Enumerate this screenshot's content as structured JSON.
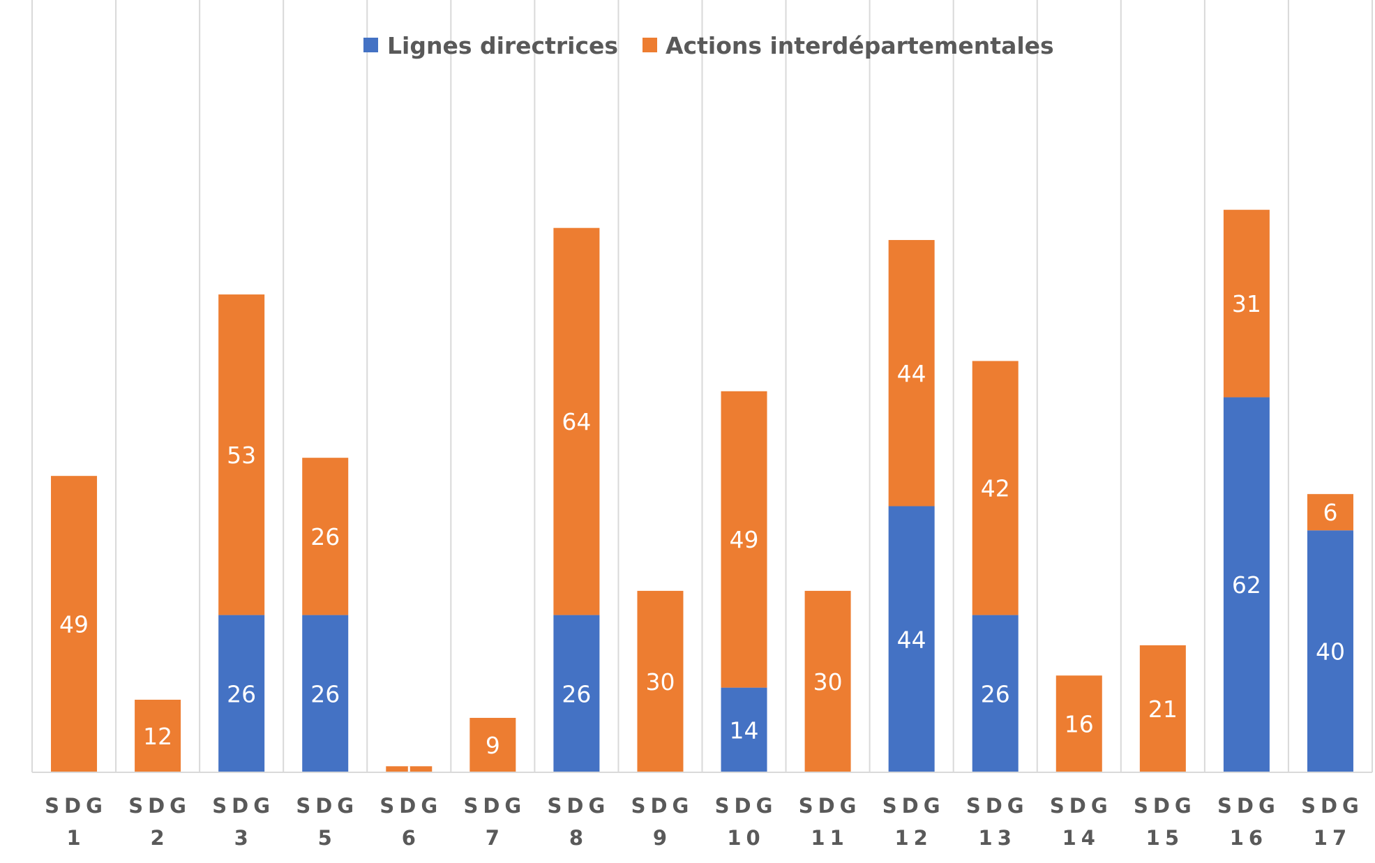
{
  "chart_data": {
    "type": "bar",
    "stacked": true,
    "title": "",
    "xlabel": "",
    "ylabel": "",
    "ylim": [
      0,
      100
    ],
    "grid": "vertical separators between categories",
    "legend_position": "top-center",
    "categories": [
      [
        "SDG",
        "1"
      ],
      [
        "SDG",
        "2"
      ],
      [
        "SDG",
        "3"
      ],
      [
        "SDG",
        "5"
      ],
      [
        "SDG",
        "6"
      ],
      [
        "SDG",
        "7"
      ],
      [
        "SDG",
        "8"
      ],
      [
        "SDG",
        "9"
      ],
      [
        "SDG",
        "10"
      ],
      [
        "SDG",
        "11"
      ],
      [
        "SDG",
        "12"
      ],
      [
        "SDG",
        "13"
      ],
      [
        "SDG",
        "14"
      ],
      [
        "SDG",
        "15"
      ],
      [
        "SDG",
        "16"
      ],
      [
        "SDG",
        "17"
      ]
    ],
    "series": [
      {
        "name": "Lignes directrices",
        "color": "#4472C4",
        "values": [
          0,
          0,
          26,
          26,
          0,
          0,
          26,
          0,
          14,
          0,
          44,
          26,
          0,
          0,
          62,
          40
        ],
        "labels": [
          "",
          "",
          "26",
          "26",
          "",
          "",
          "26",
          "",
          "14",
          "",
          "44",
          "26",
          "",
          "",
          "62",
          "40"
        ]
      },
      {
        "name": "Actions interdépartementales",
        "color": "#ED7D31",
        "values": [
          49,
          12,
          53,
          26,
          1,
          9,
          64,
          30,
          49,
          30,
          44,
          42,
          16,
          21,
          31,
          6
        ],
        "labels": [
          "49",
          "12",
          "53",
          "26",
          "",
          "9",
          "64",
          "30",
          "49",
          "30",
          "44",
          "42",
          "16",
          "21",
          "31",
          "6"
        ]
      }
    ]
  }
}
